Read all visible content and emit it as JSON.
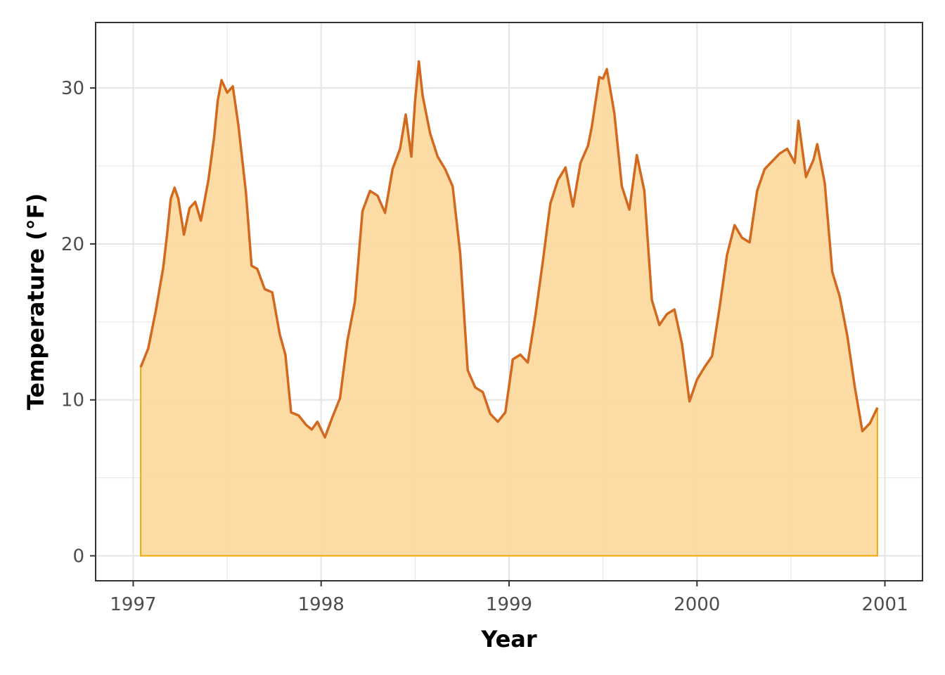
{
  "chart_data": {
    "type": "area",
    "title": "",
    "xlabel": "Year",
    "ylabel": "Temperature (°F)",
    "xlim": [
      1996.8,
      2001.2
    ],
    "ylim": [
      -1.6,
      34.2
    ],
    "x_ticks": [
      1997,
      1998,
      1999,
      2000,
      2001
    ],
    "y_ticks": [
      0,
      10,
      20,
      30
    ],
    "x_tick_labels": [
      "1997",
      "1998",
      "1999",
      "2000",
      "2001"
    ],
    "y_tick_labels": [
      "0",
      "10",
      "20",
      "30"
    ],
    "grid": true,
    "legend": "none",
    "series": [
      {
        "x": [
          1997.04,
          1997.08,
          1997.12,
          1997.16,
          1997.18,
          1997.2,
          1997.22,
          1997.24,
          1997.27,
          1997.3,
          1997.33,
          1997.36,
          1997.4,
          1997.43,
          1997.45,
          1997.47,
          1997.5,
          1997.53,
          1997.56,
          1997.6,
          1997.63,
          1997.66,
          1997.7,
          1997.74,
          1997.78,
          1997.81,
          1997.84,
          1997.88,
          1997.92,
          1997.95,
          1997.98,
          1998.02,
          1998.06,
          1998.1,
          1998.14,
          1998.18,
          1998.22,
          1998.26,
          1998.3,
          1998.34,
          1998.38,
          1998.42,
          1998.45,
          1998.48,
          1998.5,
          1998.52,
          1998.54,
          1998.58,
          1998.62,
          1998.66,
          1998.7,
          1998.74,
          1998.78,
          1998.82,
          1998.86,
          1998.9,
          1998.94,
          1998.98,
          1999.02,
          1999.06,
          1999.1,
          1999.14,
          1999.18,
          1999.2,
          1999.22,
          1999.26,
          1999.3,
          1999.34,
          1999.38,
          1999.42,
          1999.44,
          1999.48,
          1999.5,
          1999.52,
          1999.56,
          1999.6,
          1999.64,
          1999.68,
          1999.72,
          1999.76,
          1999.8,
          1999.84,
          1999.88,
          1999.92,
          1999.96,
          2000.0,
          2000.04,
          2000.08,
          2000.12,
          2000.16,
          2000.2,
          2000.24,
          2000.28,
          2000.32,
          2000.36,
          2000.4,
          2000.44,
          2000.48,
          2000.52,
          2000.54,
          2000.58,
          2000.62,
          2000.64,
          2000.68,
          2000.72,
          2000.76,
          2000.8,
          2000.84,
          2000.88,
          2000.92,
          2000.96
        ],
        "values": [
          12.1,
          13.3,
          15.7,
          18.5,
          20.6,
          22.9,
          23.6,
          22.9,
          20.6,
          22.3,
          22.7,
          21.5,
          24.1,
          26.8,
          29.2,
          30.5,
          29.7,
          30.1,
          27.6,
          23.3,
          18.6,
          18.4,
          17.1,
          16.9,
          14.2,
          12.9,
          9.2,
          9.0,
          8.4,
          8.1,
          8.6,
          7.6,
          8.9,
          10.1,
          13.8,
          16.3,
          22.1,
          23.4,
          23.1,
          22.0,
          24.8,
          26.1,
          28.3,
          25.6,
          29.2,
          31.7,
          29.5,
          27.1,
          25.6,
          24.8,
          23.7,
          19.4,
          11.9,
          10.8,
          10.5,
          9.1,
          8.6,
          9.2,
          12.6,
          12.9,
          12.4,
          15.4,
          18.9,
          20.8,
          22.6,
          24.1,
          24.9,
          22.4,
          25.2,
          26.3,
          27.5,
          30.7,
          30.6,
          31.2,
          28.4,
          23.7,
          22.2,
          25.7,
          23.4,
          16.4,
          14.8,
          15.5,
          15.8,
          13.6,
          9.9,
          11.3,
          12.1,
          12.8,
          15.9,
          19.3,
          21.2,
          20.4,
          20.1,
          23.4,
          24.8,
          25.3,
          25.8,
          26.1,
          25.2,
          27.9,
          24.3,
          25.4,
          26.4,
          23.9,
          18.2,
          16.6,
          14.1,
          10.8,
          8.0,
          8.5,
          9.5
        ]
      }
    ],
    "colors": {
      "line": "#d2691e",
      "fill": "#fdd9a0",
      "fill_edge": "#f5a800",
      "grid": "#e5e5e5",
      "panel_border": "#333333",
      "tick_text": "#4d4d4d"
    }
  }
}
